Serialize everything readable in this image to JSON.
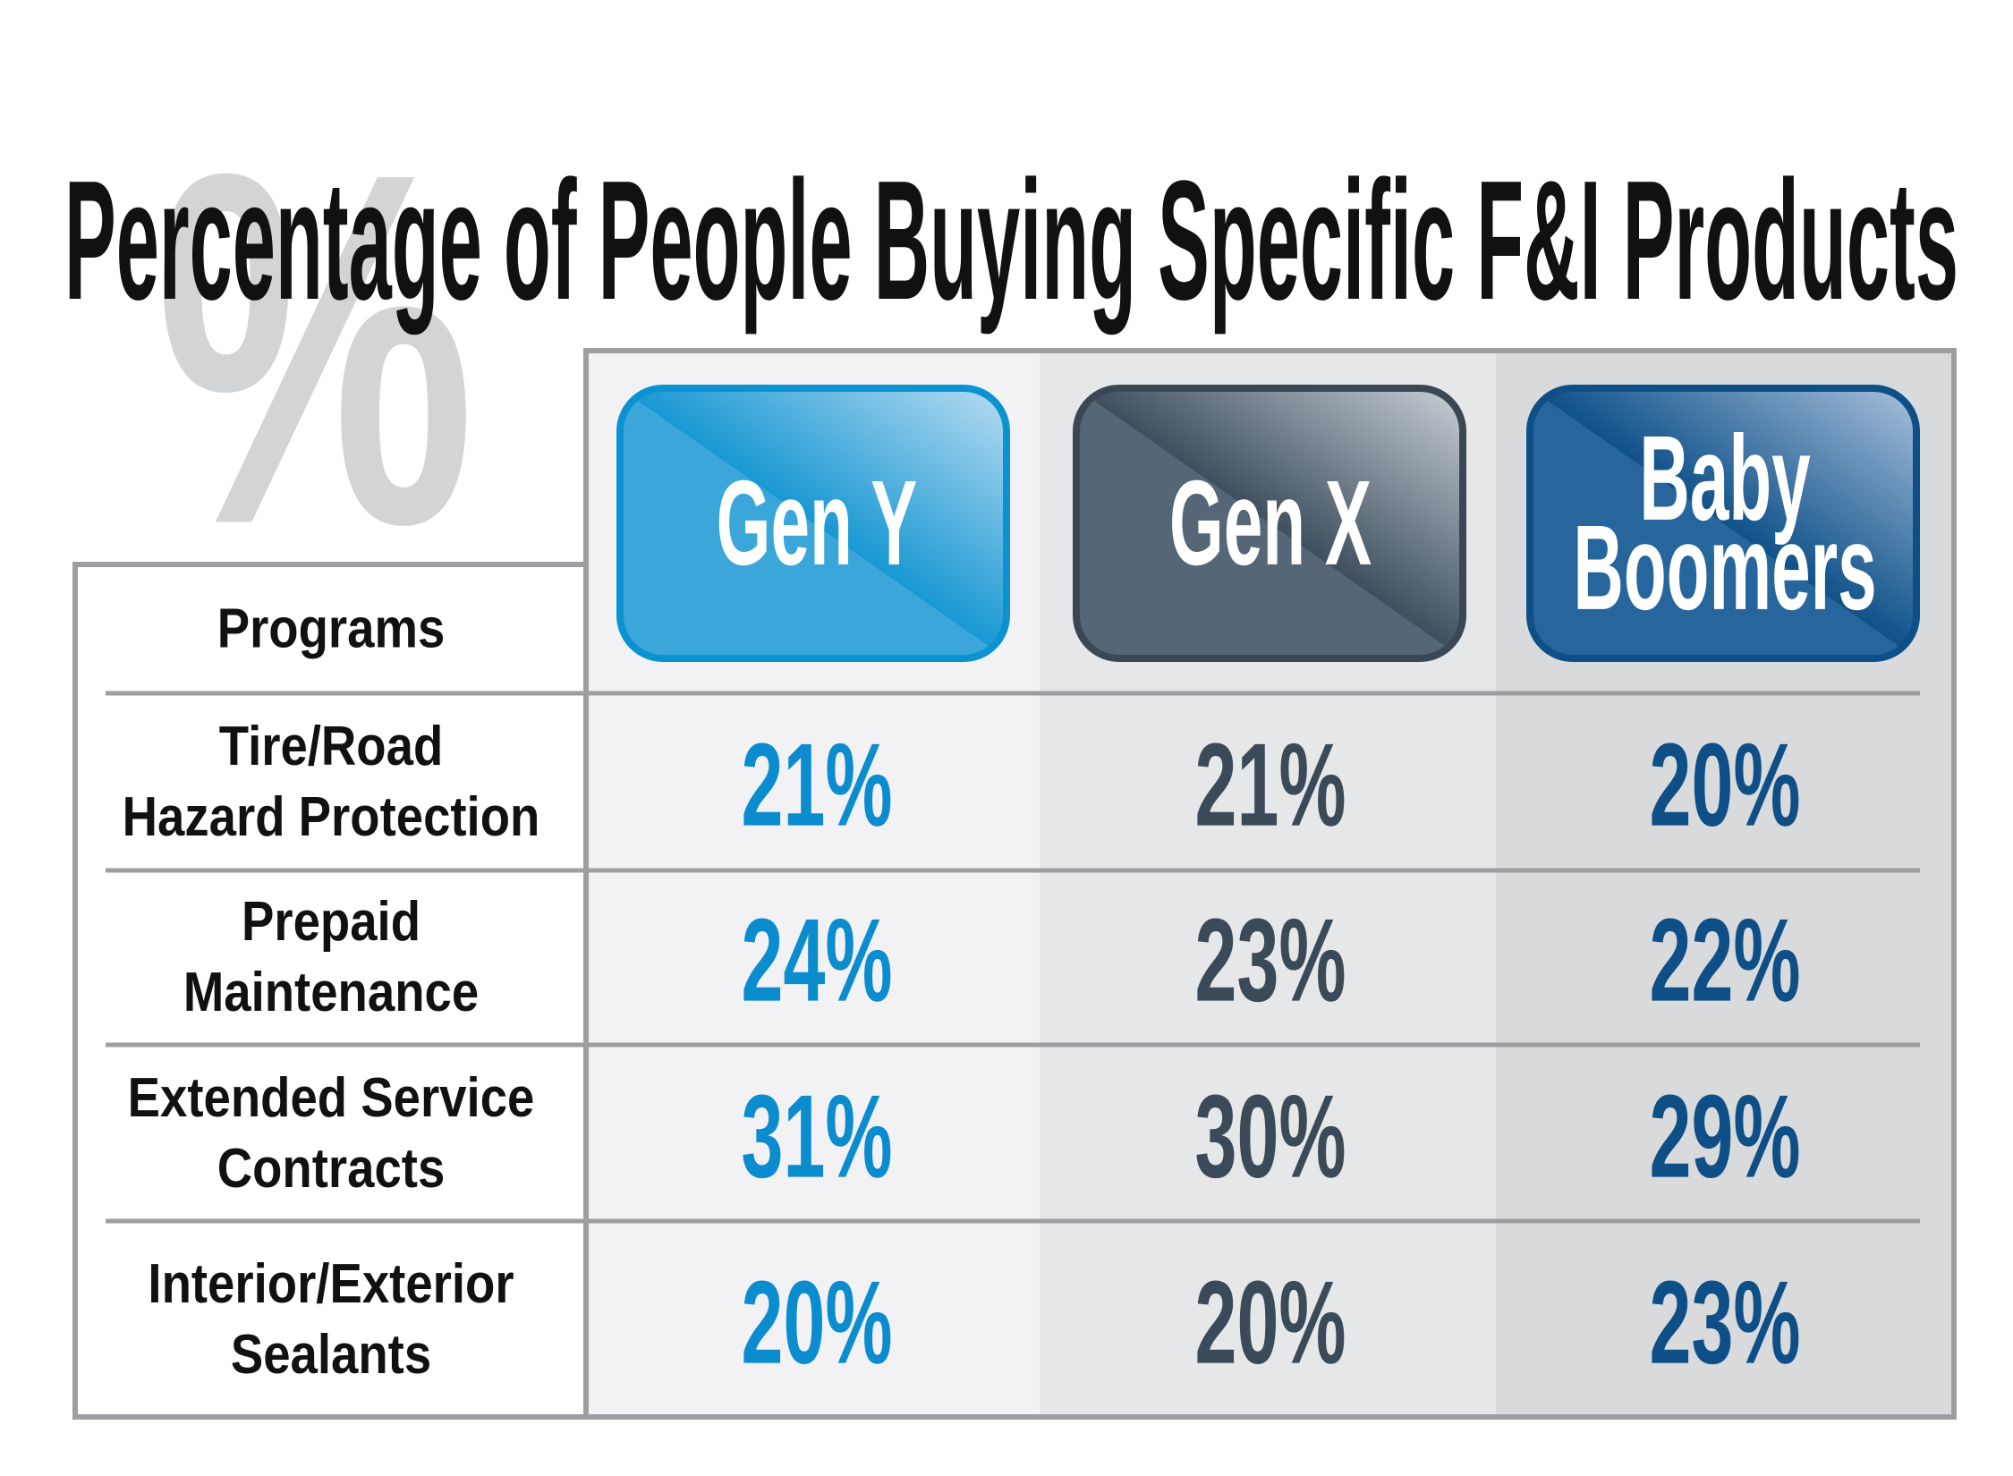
{
  "watermark": "%",
  "title": "Percentage of People Buying Specific F&I Products",
  "table": {
    "header": {
      "label": "Programs",
      "columns": [
        {
          "lines": [
            "Gen Y"
          ]
        },
        {
          "lines": [
            "Gen X"
          ]
        },
        {
          "lines": [
            "Baby",
            "Boomers"
          ]
        }
      ]
    },
    "rows": [
      {
        "lines": [
          "Tire/Road",
          "Hazard Protection"
        ],
        "cells": [
          "21%",
          "21%",
          "20%"
        ]
      },
      {
        "lines": [
          "Prepaid",
          "Maintenance"
        ],
        "cells": [
          "24%",
          "23%",
          "22%"
        ]
      },
      {
        "lines": [
          "Extended Service",
          "Contracts"
        ],
        "cells": [
          "31%",
          "30%",
          "29%"
        ]
      },
      {
        "lines": [
          "Interior/Exterior",
          "Sealants"
        ],
        "cells": [
          "20%",
          "20%",
          "23%"
        ]
      }
    ]
  }
}
